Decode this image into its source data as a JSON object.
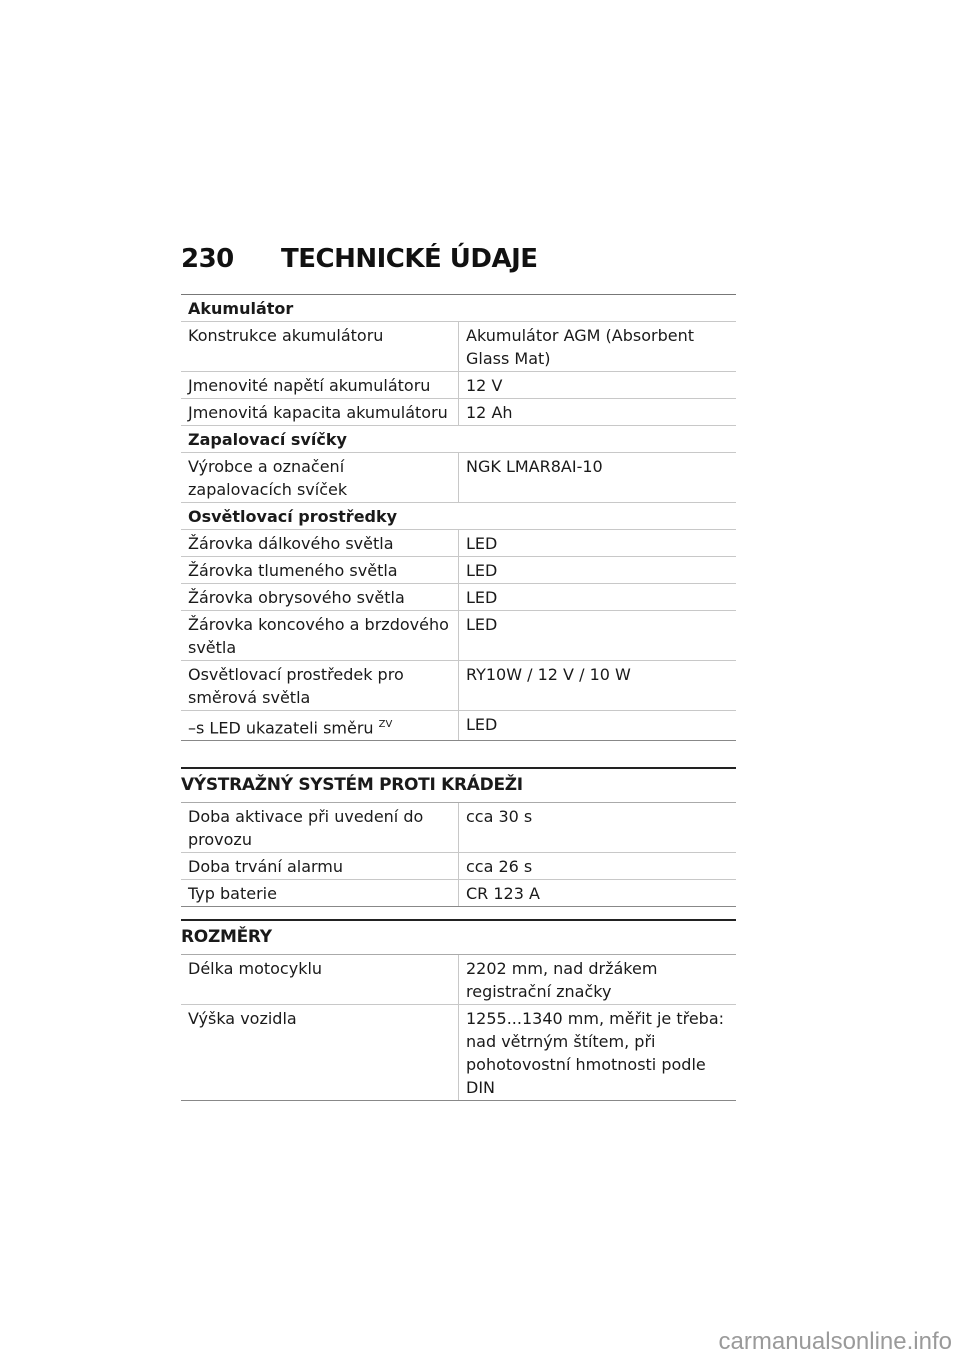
{
  "header": {
    "page_number": "230",
    "title": "TECHNICKÉ ÚDAJE"
  },
  "tables": [
    {
      "heading": "",
      "groups": [
        {
          "subheading": "Akumulátor",
          "rows": [
            {
              "label": "Konstrukce akumulátoru",
              "value": "Akumulátor AGM (Absorbent Glass Mat)"
            },
            {
              "label": "Jmenovité napětí akumulátoru",
              "value": "12 V"
            },
            {
              "label": "Jmenovitá kapacita akumulátoru",
              "value": "12 Ah"
            }
          ]
        },
        {
          "subheading": "Zapalovací svíčky",
          "rows": [
            {
              "label": "Výrobce a označení zapalovacích svíček",
              "value": "NGK LMAR8AI-10"
            }
          ]
        },
        {
          "subheading": "Osvětlovací prostředky",
          "rows": [
            {
              "label": "Žárovka dálkového světla",
              "value": "LED"
            },
            {
              "label": "Žárovka tlumeného světla",
              "value": "LED"
            },
            {
              "label": "Žárovka obrysového světla",
              "value": "LED"
            },
            {
              "label": "Žárovka koncového a brzdového světla",
              "value": "LED"
            },
            {
              "label": "Osvětlovací prostředek pro směrová světla",
              "value": "RY10W / 12 V / 10 W"
            },
            {
              "label": "–s LED ukazateli směru",
              "sup": "ZV",
              "value": "LED"
            }
          ]
        }
      ]
    },
    {
      "heading": "VÝSTRAŽNÝ SYSTÉM PROTI KRÁDEŽI",
      "groups": [
        {
          "subheading": "",
          "rows": [
            {
              "label": "Doba aktivace při uvedení do provozu",
              "value": "cca 30 s"
            },
            {
              "label": "Doba trvání alarmu",
              "value": "cca 26 s"
            },
            {
              "label": "Typ baterie",
              "value": "CR 123 A"
            }
          ]
        }
      ]
    },
    {
      "heading": "ROZMĚRY",
      "groups": [
        {
          "subheading": "",
          "rows": [
            {
              "label": "Délka motocyklu",
              "value": "2202 mm, nad držákem registrační značky"
            },
            {
              "label": "Výška vozidla",
              "value": "1255...1340 mm, měřit je třeba: nad větrným štítem, při pohotovostní hmotnosti podle DIN"
            }
          ]
        }
      ]
    }
  ],
  "watermark": "carmanualsonline.info"
}
